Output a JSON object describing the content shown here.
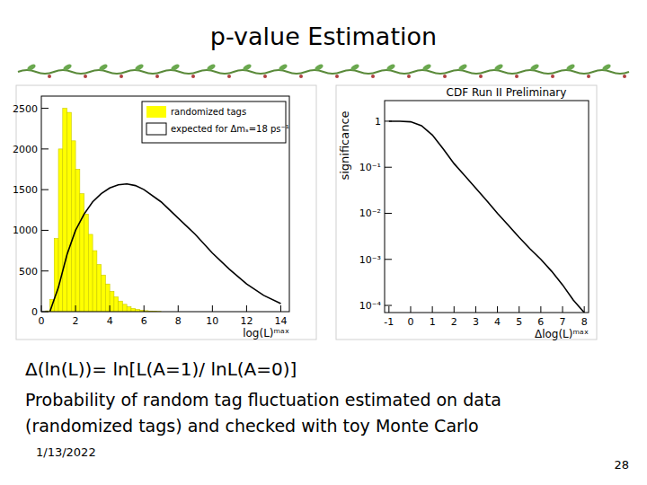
{
  "slide": {
    "title": "p-value Estimation",
    "formula": "Δ(ln(L))= ln[L(A=1)/ lnL(A=0)]",
    "caption": [
      "Probability of random tag fluctuation estimated on data",
      "(randomized tags) and checked with toy Monte Carlo"
    ],
    "date": "1/13/2022",
    "page": "28"
  },
  "chart_data": [
    {
      "type": "histogram",
      "x_label": "log(L)ᵐᵃˣ",
      "bins": [
        0,
        0.25,
        0.5,
        0.75,
        1,
        1.25,
        1.5,
        1.75,
        2,
        2.25,
        2.5,
        2.75,
        3,
        3.25,
        3.5,
        3.75,
        4,
        4.25,
        4.5,
        4.75,
        5,
        5.25,
        5.5,
        5.75,
        6,
        6.25,
        6.5,
        6.75,
        7
      ],
      "series": [
        {
          "name": "randomized tags",
          "type": "histogram",
          "color": "#ffff00",
          "values": [
            0,
            10,
            150,
            900,
            2000,
            2500,
            2450,
            2100,
            1750,
            1450,
            1200,
            950,
            750,
            580,
            450,
            340,
            250,
            180,
            130,
            90,
            60,
            40,
            28,
            18,
            12,
            8,
            5,
            3
          ]
        },
        {
          "name": "expected for Δmₛ=18 ps⁻¹",
          "type": "line",
          "color": "#000000",
          "x": [
            0.5,
            1,
            1.5,
            2,
            2.5,
            3,
            3.5,
            4,
            4.5,
            5,
            5.5,
            6,
            7,
            8,
            9,
            10,
            11,
            12,
            13,
            14
          ],
          "values": [
            0,
            300,
            700,
            1000,
            1200,
            1350,
            1450,
            1520,
            1560,
            1570,
            1550,
            1500,
            1350,
            1150,
            950,
            720,
            520,
            340,
            200,
            100
          ]
        }
      ],
      "xlim": [
        0,
        14.5
      ],
      "ylim": [
        0,
        2650
      ],
      "xticks": [
        0,
        2,
        4,
        6,
        8,
        10,
        12,
        14
      ],
      "yticks": [
        0,
        500,
        1000,
        1500,
        2000,
        2500
      ],
      "legend": "upper right"
    },
    {
      "type": "line",
      "title": "CDF Run II Preliminary",
      "x_label": "Δlog(L)ᵐᵃˣ",
      "y_label": "significance",
      "log": "y",
      "series": [
        {
          "color": "#000000",
          "x": [
            -1,
            -0.5,
            0,
            0.5,
            1,
            1.5,
            2,
            2.5,
            3,
            3.5,
            4,
            4.5,
            5,
            5.5,
            6,
            6.5,
            7,
            7.5,
            8
          ],
          "values": [
            1,
            1,
            0.97,
            0.8,
            0.5,
            0.25,
            0.12,
            0.065,
            0.035,
            0.019,
            0.01,
            0.0055,
            0.003,
            0.0017,
            0.001,
            0.00055,
            0.00028,
            0.00013,
            7e-05
          ]
        }
      ],
      "xlim": [
        -1.2,
        8.2
      ],
      "ylim": [
        7e-05,
        2.8
      ],
      "xticks": [
        -1,
        0,
        1,
        2,
        3,
        4,
        5,
        6,
        7,
        8
      ],
      "yticks": [
        1,
        {
          "value": 0.1,
          "label": "10⁻¹"
        },
        {
          "value": 0.01,
          "label": "10⁻²"
        },
        {
          "value": 0.001,
          "label": "10⁻³"
        },
        {
          "value": 0.0001,
          "label": "10⁻⁴"
        }
      ]
    }
  ]
}
